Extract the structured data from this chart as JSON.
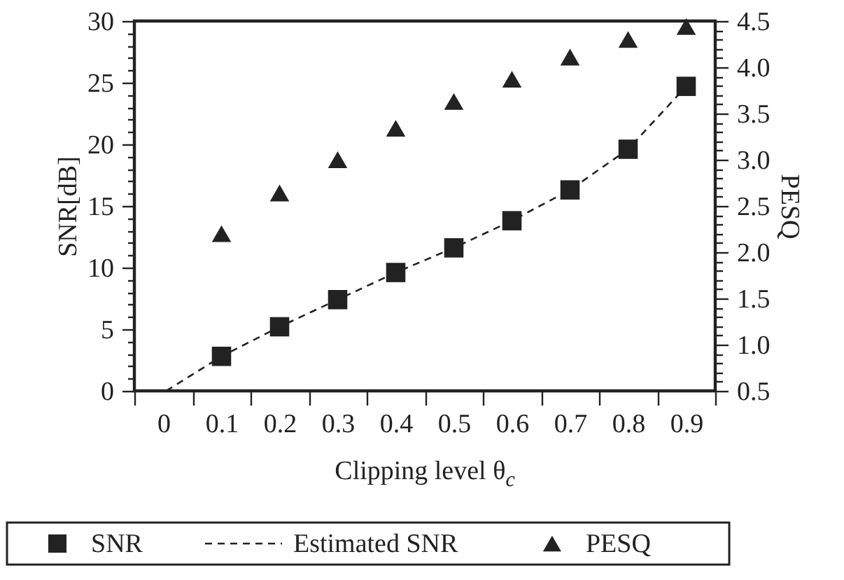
{
  "chart_data": {
    "type": "scatter",
    "xlabel": "Clipping level θ$_{c}$",
    "ylabel": "SNR[dB]",
    "y2label": "PESQ",
    "x": [
      0.1,
      0.2,
      0.3,
      0.4,
      0.5,
      0.6,
      0.7,
      0.8,
      0.9
    ],
    "xlim": [
      -0.05,
      0.95
    ],
    "xticks": [
      {
        "value": -0.05,
        "label": null
      },
      0,
      {
        "value": 0.05,
        "label": null
      },
      0.1,
      {
        "value": 0.15,
        "label": null
      },
      0.2,
      {
        "value": 0.25,
        "label": null
      },
      0.3,
      {
        "value": 0.35,
        "label": null
      },
      0.4,
      {
        "value": 0.45,
        "label": null
      },
      0.5,
      {
        "value": 0.55,
        "label": null
      },
      0.6,
      {
        "value": 0.65,
        "label": null
      },
      0.7,
      {
        "value": 0.75,
        "label": null
      },
      0.8,
      {
        "value": 0.85,
        "label": null
      },
      0.9,
      {
        "value": 0.95,
        "label": null
      }
    ],
    "ylim": [
      0,
      30
    ],
    "yticks": [
      0,
      {
        "value": 1,
        "label": null
      },
      {
        "value": 2,
        "label": null
      },
      {
        "value": 3,
        "label": null
      },
      {
        "value": 4,
        "label": null
      },
      5,
      {
        "value": 6,
        "label": null
      },
      {
        "value": 7,
        "label": null
      },
      {
        "value": 8,
        "label": null
      },
      {
        "value": 9,
        "label": null
      },
      10,
      {
        "value": 11,
        "label": null
      },
      {
        "value": 12,
        "label": null
      },
      {
        "value": 13,
        "label": null
      },
      {
        "value": 14,
        "label": null
      },
      15,
      {
        "value": 16,
        "label": null
      },
      {
        "value": 17,
        "label": null
      },
      {
        "value": 18,
        "label": null
      },
      {
        "value": 19,
        "label": null
      },
      20,
      {
        "value": 21,
        "label": null
      },
      {
        "value": 22,
        "label": null
      },
      {
        "value": 23,
        "label": null
      },
      {
        "value": 24,
        "label": null
      },
      25,
      {
        "value": 26,
        "label": null
      },
      {
        "value": 27,
        "label": null
      },
      {
        "value": 28,
        "label": null
      },
      {
        "value": 29,
        "label": null
      },
      30
    ],
    "y2lim": [
      0.5,
      4.5
    ],
    "y2ticks": [
      0.5,
      {
        "value": 0.6,
        "label": null
      },
      {
        "value": 0.7,
        "label": null
      },
      {
        "value": 0.8,
        "label": null
      },
      {
        "value": 0.9,
        "label": null
      },
      {
        "value": 1,
        "label": "1.0"
      },
      {
        "value": 1.1,
        "label": null
      },
      {
        "value": 1.2,
        "label": null
      },
      {
        "value": 1.3,
        "label": null
      },
      {
        "value": 1.4,
        "label": null
      },
      1.5,
      {
        "value": 1.6,
        "label": null
      },
      {
        "value": 1.7,
        "label": null
      },
      {
        "value": 1.8,
        "label": null
      },
      {
        "value": 1.9,
        "label": null
      },
      {
        "value": 2,
        "label": "2.0"
      },
      {
        "value": 2.1,
        "label": null
      },
      {
        "value": 2.2,
        "label": null
      },
      {
        "value": 2.3,
        "label": null
      },
      {
        "value": 2.4,
        "label": null
      },
      2.5,
      {
        "value": 2.6,
        "label": null
      },
      {
        "value": 2.7,
        "label": null
      },
      {
        "value": 2.8,
        "label": null
      },
      {
        "value": 2.9,
        "label": null
      },
      {
        "value": 3,
        "label": "3.0"
      },
      {
        "value": 3.1,
        "label": null
      },
      {
        "value": 3.2,
        "label": null
      },
      {
        "value": 3.3,
        "label": null
      },
      {
        "value": 3.4,
        "label": null
      },
      3.5,
      {
        "value": 3.6,
        "label": null
      },
      {
        "value": 3.7,
        "label": null
      },
      {
        "value": 3.8,
        "label": null
      },
      {
        "value": 3.9,
        "label": null
      },
      {
        "value": 4,
        "label": "4.0"
      },
      {
        "value": 4.1,
        "label": null
      },
      {
        "value": 4.2,
        "label": null
      },
      {
        "value": 4.3,
        "label": null
      },
      {
        "value": 4.4,
        "label": null
      },
      4.5
    ],
    "grid": false,
    "legend": "bottom",
    "series": [
      {
        "name": "SNR",
        "type": "scatter",
        "marker": "square",
        "color": "#222222",
        "values": [
          2.8,
          5.2,
          7.4,
          9.6,
          11.6,
          13.8,
          16.3,
          19.6,
          24.7
        ]
      },
      {
        "name": "Estimated SNR",
        "type": "line",
        "marker": "none",
        "line_style": "dashed",
        "color": "#222222",
        "x": [
          0.005,
          0.1,
          0.2,
          0.3,
          0.4,
          0.5,
          0.6,
          0.7,
          0.8,
          0.9
        ],
        "values": [
          0,
          2.8,
          5.2,
          7.4,
          9.6,
          11.6,
          13.8,
          16.3,
          19.6,
          24.7
        ]
      },
      {
        "name": "PESQ",
        "type": "scatter",
        "marker": "triangle",
        "axis": "y2",
        "color": "#222222",
        "values": [
          2.2,
          2.64,
          3.0,
          3.34,
          3.63,
          3.87,
          4.11,
          4.3,
          4.44
        ]
      }
    ]
  }
}
